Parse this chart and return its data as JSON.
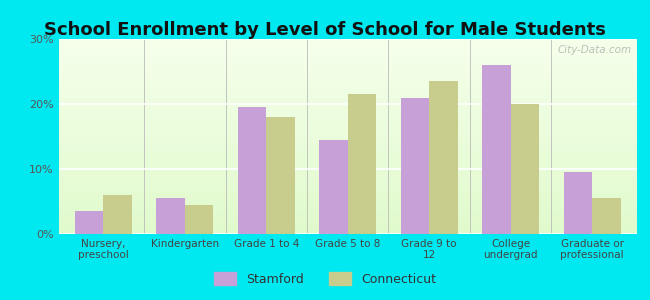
{
  "title": "School Enrollment by Level of School for Male Students",
  "categories": [
    "Nursery,\npreschool",
    "Kindergarten",
    "Grade 1 to 4",
    "Grade 5 to 8",
    "Grade 9 to\n12",
    "College\nundergrad",
    "Graduate or\nprofessional"
  ],
  "stamford": [
    3.5,
    5.5,
    19.5,
    14.5,
    21.0,
    26.0,
    9.5
  ],
  "connecticut": [
    6.0,
    4.5,
    18.0,
    21.5,
    23.5,
    20.0,
    5.5
  ],
  "stamford_color": "#c8a0d8",
  "connecticut_color": "#c8cc8c",
  "background_outer": "#00e8f0",
  "ylim": [
    0,
    30
  ],
  "yticks": [
    0,
    10,
    20,
    30
  ],
  "ytick_labels": [
    "0%",
    "10%",
    "20%",
    "30%"
  ],
  "title_fontsize": 13,
  "legend_labels": [
    "Stamford",
    "Connecticut"
  ],
  "bar_width": 0.35,
  "watermark": "City-Data.com"
}
